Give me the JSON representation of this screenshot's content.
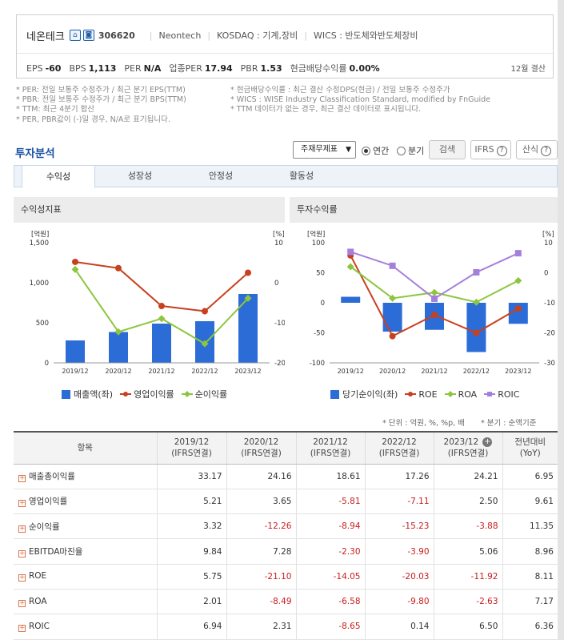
{
  "company": {
    "name": "네온테크",
    "code": "306620",
    "english_name": "Neontech",
    "market": "KOSDAQ : 기계,장비",
    "wics": "WICS : 반도체와반도체장비",
    "icons": [
      "home-icon",
      "report-icon"
    ]
  },
  "stats": [
    {
      "label": "EPS",
      "value": "-60"
    },
    {
      "label": "BPS",
      "value": "1,113"
    },
    {
      "label": "PER",
      "value": "N/A"
    },
    {
      "label": "업종PER",
      "value": "17.94"
    },
    {
      "label": "PBR",
      "value": "1.53"
    },
    {
      "label": "현금배당수익률",
      "value": "0.00%"
    }
  ],
  "settlement": "12월 결산",
  "notes_left": [
    "* PER: 전일 보통주 수정주가 / 최근 분기 EPS(TTM)",
    "* PBR: 전일 보통주 수정주가 / 최근 분기 BPS(TTM)",
    "* TTM: 최근 4분기 합산",
    "* PER, PBR값이 (-)일 경우, N/A로 표기됩니다."
  ],
  "notes_right": [
    "* 현금배당수익률 : 최근 결산 수정DPS(현금) / 전일 보통주 수정주가",
    "* WICS : WISE Industry Classification Standard, modified by FnGuide",
    "* TTM 데이터가 없는 경우, 최근 결산 데이터로 표시됩니다."
  ],
  "analysis": {
    "title": "투자분석",
    "select_value": "주재무제표",
    "radio_annual": "연간",
    "radio_quarter": "분기",
    "search_button": "검색",
    "ifrs_button": "IFRS",
    "formula_button": "산식",
    "tabs": [
      "수익성",
      "성장성",
      "안정성",
      "활동성"
    ]
  },
  "chart_data": [
    {
      "type": "bar",
      "title": "수익성지표",
      "categories": [
        "2019/12",
        "2020/12",
        "2021/12",
        "2022/12",
        "2023/12"
      ],
      "left_axis_label": "[억원]",
      "right_axis_label": "[%]",
      "left_ticks": [
        "1,500",
        "1,000",
        "500",
        "0"
      ],
      "right_ticks": [
        "10",
        "0",
        "-10",
        "-20"
      ],
      "left_ylim": [
        0,
        1500
      ],
      "right_ylim": [
        -20,
        10
      ],
      "series": [
        {
          "name": "매출액(좌)",
          "kind": "bar",
          "axis": "left",
          "color": "#2c6cd6",
          "values": [
            280,
            385,
            490,
            520,
            860
          ]
        },
        {
          "name": "영업이익률",
          "kind": "line",
          "axis": "right",
          "color": "#c8401f",
          "values": [
            5.21,
            3.65,
            -5.81,
            -7.11,
            2.5
          ]
        },
        {
          "name": "순이익률",
          "kind": "line",
          "axis": "right",
          "color": "#8cc63e",
          "values": [
            3.32,
            -12.26,
            -8.94,
            -15.23,
            -3.88
          ]
        }
      ],
      "legend_position": "bottom",
      "grid": false
    },
    {
      "type": "bar",
      "title": "투자수익률",
      "categories": [
        "2019/12",
        "2020/12",
        "2021/12",
        "2022/12",
        "2023/12"
      ],
      "left_axis_label": "[억원]",
      "right_axis_label": "[%]",
      "left_ticks": [
        "100",
        "50",
        "0",
        "-50",
        "-100"
      ],
      "right_ticks": [
        "10",
        "0",
        "-10",
        "-20",
        "-30"
      ],
      "left_ylim": [
        -100,
        100
      ],
      "right_ylim": [
        -30,
        10
      ],
      "series": [
        {
          "name": "당기순이익(좌)",
          "kind": "bar",
          "axis": "left",
          "color": "#2c6cd6",
          "values": [
            10,
            -48,
            -45,
            -82,
            -35
          ]
        },
        {
          "name": "ROE",
          "kind": "line",
          "axis": "right",
          "color": "#c8401f",
          "values": [
            5.75,
            -21.1,
            -14.05,
            -20.03,
            -11.92
          ]
        },
        {
          "name": "ROA",
          "kind": "line",
          "axis": "right",
          "color": "#8cc63e",
          "values": [
            2.01,
            -8.49,
            -6.58,
            -9.8,
            -2.63
          ]
        },
        {
          "name": "ROIC",
          "kind": "line",
          "axis": "right",
          "color": "#a57fdc",
          "values": [
            6.94,
            2.31,
            -8.65,
            0.14,
            6.5
          ]
        }
      ],
      "legend_position": "bottom",
      "grid": false
    }
  ],
  "unit_note": "* 단위 : 억원, %, %p, 배",
  "period_note": "* 분기 : 순액기준",
  "table": {
    "header_item": "항목",
    "columns": [
      {
        "year": "2019/12",
        "basis": "(IFRS연결)"
      },
      {
        "year": "2020/12",
        "basis": "(IFRS연결)"
      },
      {
        "year": "2021/12",
        "basis": "(IFRS연결)"
      },
      {
        "year": "2022/12",
        "basis": "(IFRS연결)"
      },
      {
        "year": "2023/12",
        "basis": "(IFRS연결)"
      }
    ],
    "yoy_header": "전년대비",
    "yoy_sub": "(YoY)",
    "rows": [
      {
        "label": "매출총이익률",
        "values": [
          "33.17",
          "24.16",
          "18.61",
          "17.26",
          "24.21"
        ],
        "yoy": "6.95"
      },
      {
        "label": "영업이익률",
        "values": [
          "5.21",
          "3.65",
          "-5.81",
          "-7.11",
          "2.50"
        ],
        "yoy": "9.61"
      },
      {
        "label": "순이익률",
        "values": [
          "3.32",
          "-12.26",
          "-8.94",
          "-15.23",
          "-3.88"
        ],
        "yoy": "11.35"
      },
      {
        "label": "EBITDA마진율",
        "values": [
          "9.84",
          "7.28",
          "-2.30",
          "-3.90",
          "5.06"
        ],
        "yoy": "8.96"
      },
      {
        "label": "ROE",
        "values": [
          "5.75",
          "-21.10",
          "-14.05",
          "-20.03",
          "-11.92"
        ],
        "yoy": "8.11"
      },
      {
        "label": "ROA",
        "values": [
          "2.01",
          "-8.49",
          "-6.58",
          "-9.80",
          "-2.63"
        ],
        "yoy": "7.17"
      },
      {
        "label": "ROIC",
        "values": [
          "6.94",
          "2.31",
          "-8.65",
          "0.14",
          "6.50"
        ],
        "yoy": "6.36"
      }
    ]
  }
}
